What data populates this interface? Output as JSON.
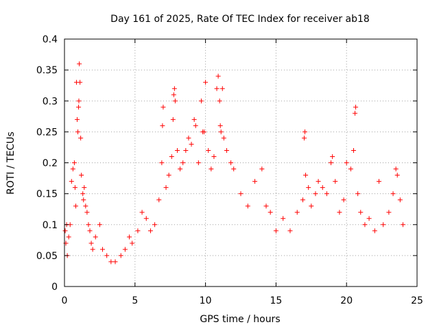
{
  "chart_data": {
    "type": "scatter",
    "title": "Day 161 of 2025, Rate Of TEC Index for receiver ab18",
    "xlabel": "GPS time / hours",
    "ylabel": "ROTI / TECUs",
    "xlim": [
      0,
      25
    ],
    "ylim": [
      0,
      0.4
    ],
    "xticks": [
      0,
      5,
      10,
      15,
      20,
      25
    ],
    "yticks": [
      0,
      0.05,
      0.1,
      0.15,
      0.2,
      0.25,
      0.3,
      0.35,
      0.4
    ],
    "xtick_labels": [
      "0",
      "5",
      "10",
      "15",
      "20",
      "25"
    ],
    "ytick_labels": [
      "0",
      "0.05",
      "0.1",
      "0.15",
      "0.2",
      "0.25",
      "0.3",
      "0.35",
      "0.4"
    ],
    "grid": true,
    "marker": "+",
    "color": "#ff0000",
    "series": [
      {
        "points": [
          [
            0.05,
            0.09
          ],
          [
            0.1,
            0.07
          ],
          [
            0.15,
            0.1
          ],
          [
            0.2,
            0.05
          ],
          [
            0.3,
            0.08
          ],
          [
            0.4,
            0.1
          ],
          [
            0.5,
            0.17
          ],
          [
            0.6,
            0.19
          ],
          [
            0.7,
            0.2
          ],
          [
            0.75,
            0.16
          ],
          [
            0.8,
            0.13
          ],
          [
            0.85,
            0.33
          ],
          [
            0.9,
            0.27
          ],
          [
            0.95,
            0.25
          ],
          [
            1.0,
            0.29
          ],
          [
            1.02,
            0.3
          ],
          [
            1.05,
            0.36
          ],
          [
            1.1,
            0.33
          ],
          [
            1.15,
            0.24
          ],
          [
            1.2,
            0.18
          ],
          [
            1.3,
            0.15
          ],
          [
            1.35,
            0.14
          ],
          [
            1.4,
            0.16
          ],
          [
            1.5,
            0.13
          ],
          [
            1.6,
            0.12
          ],
          [
            1.7,
            0.1
          ],
          [
            1.8,
            0.09
          ],
          [
            1.9,
            0.07
          ],
          [
            2.0,
            0.06
          ],
          [
            2.2,
            0.08
          ],
          [
            2.5,
            0.1
          ],
          [
            2.7,
            0.06
          ],
          [
            3.0,
            0.05
          ],
          [
            3.3,
            0.04
          ],
          [
            3.6,
            0.04
          ],
          [
            4.0,
            0.05
          ],
          [
            4.3,
            0.06
          ],
          [
            4.6,
            0.08
          ],
          [
            4.8,
            0.07
          ],
          [
            5.2,
            0.09
          ],
          [
            5.5,
            0.12
          ],
          [
            5.8,
            0.11
          ],
          [
            6.1,
            0.09
          ],
          [
            6.4,
            0.1
          ],
          [
            6.7,
            0.14
          ],
          [
            6.9,
            0.2
          ],
          [
            6.95,
            0.26
          ],
          [
            7.0,
            0.29
          ],
          [
            7.2,
            0.16
          ],
          [
            7.4,
            0.18
          ],
          [
            7.6,
            0.21
          ],
          [
            7.7,
            0.27
          ],
          [
            7.75,
            0.31
          ],
          [
            7.8,
            0.32
          ],
          [
            7.85,
            0.3
          ],
          [
            8.0,
            0.22
          ],
          [
            8.2,
            0.19
          ],
          [
            8.4,
            0.2
          ],
          [
            8.6,
            0.22
          ],
          [
            8.8,
            0.24
          ],
          [
            9.0,
            0.23
          ],
          [
            9.2,
            0.27
          ],
          [
            9.3,
            0.26
          ],
          [
            9.5,
            0.2
          ],
          [
            9.7,
            0.3
          ],
          [
            9.8,
            0.25
          ],
          [
            9.9,
            0.25
          ],
          [
            10.0,
            0.33
          ],
          [
            10.2,
            0.22
          ],
          [
            10.4,
            0.19
          ],
          [
            10.6,
            0.21
          ],
          [
            10.8,
            0.32
          ],
          [
            10.9,
            0.34
          ],
          [
            11.0,
            0.3
          ],
          [
            11.05,
            0.26
          ],
          [
            11.1,
            0.25
          ],
          [
            11.2,
            0.32
          ],
          [
            11.3,
            0.24
          ],
          [
            11.5,
            0.22
          ],
          [
            11.8,
            0.2
          ],
          [
            12.0,
            0.19
          ],
          [
            12.5,
            0.15
          ],
          [
            13.0,
            0.13
          ],
          [
            13.5,
            0.17
          ],
          [
            14.0,
            0.19
          ],
          [
            14.3,
            0.13
          ],
          [
            14.6,
            0.12
          ],
          [
            15.0,
            0.09
          ],
          [
            15.5,
            0.11
          ],
          [
            16.0,
            0.09
          ],
          [
            16.5,
            0.12
          ],
          [
            16.9,
            0.14
          ],
          [
            17.0,
            0.24
          ],
          [
            17.05,
            0.25
          ],
          [
            17.1,
            0.18
          ],
          [
            17.3,
            0.16
          ],
          [
            17.5,
            0.13
          ],
          [
            17.8,
            0.15
          ],
          [
            18.0,
            0.17
          ],
          [
            18.3,
            0.16
          ],
          [
            18.6,
            0.15
          ],
          [
            18.9,
            0.2
          ],
          [
            19.0,
            0.21
          ],
          [
            19.2,
            0.17
          ],
          [
            19.5,
            0.12
          ],
          [
            19.8,
            0.14
          ],
          [
            20.0,
            0.2
          ],
          [
            20.3,
            0.19
          ],
          [
            20.5,
            0.22
          ],
          [
            20.6,
            0.28
          ],
          [
            20.65,
            0.29
          ],
          [
            20.8,
            0.15
          ],
          [
            21.0,
            0.12
          ],
          [
            21.3,
            0.1
          ],
          [
            21.6,
            0.11
          ],
          [
            22.0,
            0.09
          ],
          [
            22.3,
            0.17
          ],
          [
            22.6,
            0.1
          ],
          [
            23.0,
            0.12
          ],
          [
            23.3,
            0.15
          ],
          [
            23.5,
            0.19
          ],
          [
            23.6,
            0.18
          ],
          [
            23.8,
            0.14
          ],
          [
            24.0,
            0.1
          ]
        ]
      }
    ]
  }
}
